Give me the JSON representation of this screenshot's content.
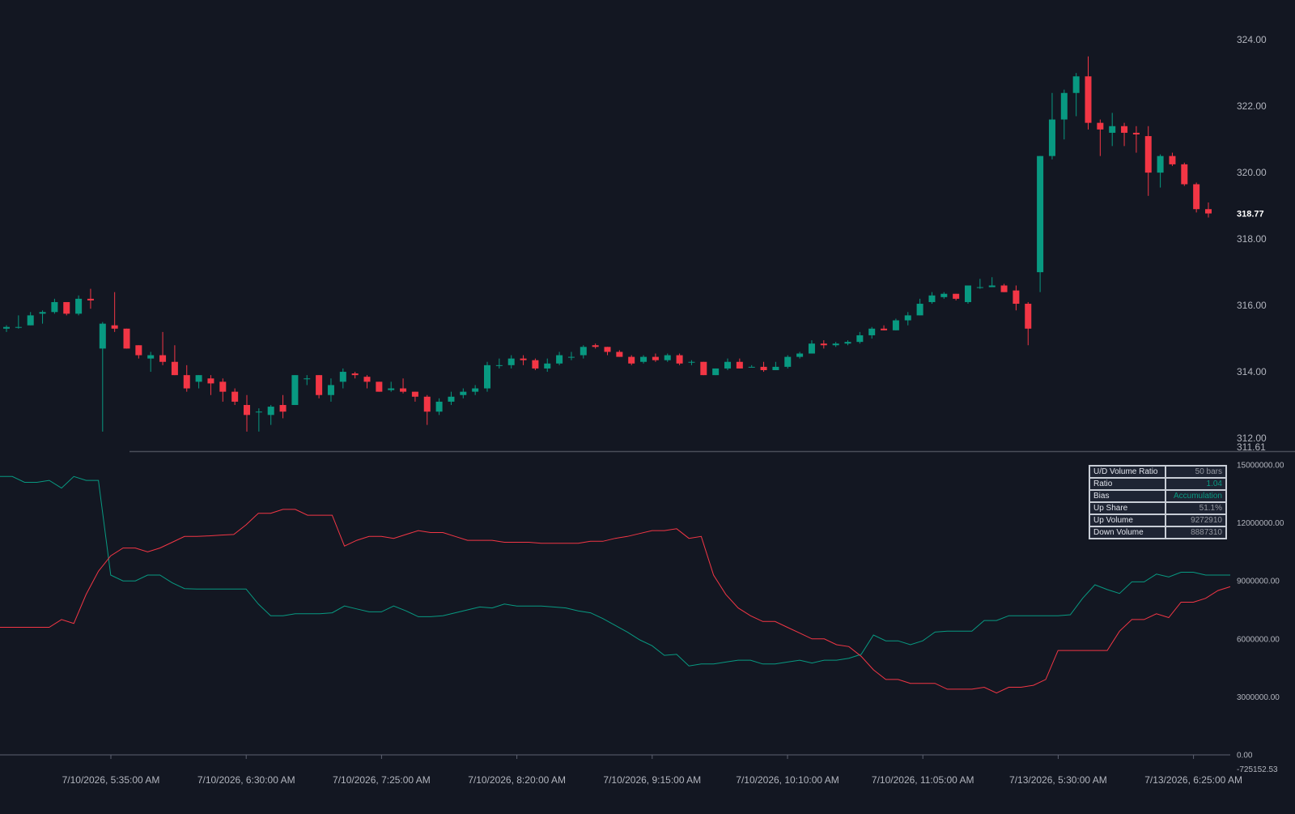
{
  "chart_data": [
    {
      "type": "candlestick",
      "name": "price",
      "price_axis_ticks": [
        "324.00",
        "322.00",
        "320.00",
        "318.00",
        "316.00",
        "314.00",
        "312.00"
      ],
      "ylim": [
        311.61,
        325.2
      ],
      "last_price": "318.77",
      "pane_bottom_label": "311.61",
      "time_labels": [
        "7/10/2026, 5:35:00 AM",
        "7/10/2026, 6:30:00 AM",
        "7/10/2026, 7:25:00 AM",
        "7/10/2026, 8:20:00 AM",
        "7/10/2026, 9:15:00 AM",
        "7/10/2026, 10:10:00 AM",
        "7/10/2026, 11:05:00 AM",
        "7/13/2026, 5:30:00 AM",
        "7/13/2026, 6:25:00 AM"
      ],
      "ohlc": [
        [
          315.3,
          315.4,
          315.2,
          315.35
        ],
        [
          315.35,
          315.7,
          315.3,
          315.35
        ],
        [
          315.4,
          315.8,
          315.4,
          315.7
        ],
        [
          315.75,
          315.85,
          315.45,
          315.8
        ],
        [
          315.8,
          316.2,
          315.75,
          316.1
        ],
        [
          316.1,
          316.1,
          315.7,
          315.75
        ],
        [
          315.75,
          316.3,
          315.7,
          316.2
        ],
        [
          316.2,
          316.5,
          315.9,
          316.15
        ],
        [
          314.7,
          315.5,
          312.2,
          315.45
        ],
        [
          315.4,
          316.4,
          315.2,
          315.3
        ],
        [
          315.3,
          315.3,
          314.7,
          314.7
        ],
        [
          314.8,
          314.8,
          314.4,
          314.5
        ],
        [
          314.4,
          314.6,
          314.0,
          314.5
        ],
        [
          314.5,
          315.2,
          314.2,
          314.3
        ],
        [
          314.3,
          314.8,
          313.9,
          313.9
        ],
        [
          313.9,
          314.2,
          313.4,
          313.5
        ],
        [
          313.7,
          313.9,
          313.5,
          313.9
        ],
        [
          313.8,
          313.9,
          313.3,
          313.65
        ],
        [
          313.7,
          313.8,
          313.1,
          313.4
        ],
        [
          313.4,
          313.5,
          313.0,
          313.1
        ],
        [
          313.0,
          313.3,
          312.2,
          312.7
        ],
        [
          312.8,
          312.9,
          312.2,
          312.8
        ],
        [
          312.7,
          313.0,
          312.4,
          312.95
        ],
        [
          313.0,
          313.3,
          312.6,
          312.8
        ],
        [
          313.0,
          313.9,
          313.0,
          313.9
        ],
        [
          313.8,
          313.9,
          313.6,
          313.8
        ],
        [
          313.9,
          313.9,
          313.2,
          313.3
        ],
        [
          313.3,
          313.8,
          313.1,
          313.6
        ],
        [
          313.7,
          314.1,
          313.5,
          314.0
        ],
        [
          313.95,
          314.0,
          313.8,
          313.9
        ],
        [
          313.85,
          313.9,
          313.5,
          313.7
        ],
        [
          313.7,
          313.7,
          313.4,
          313.4
        ],
        [
          313.45,
          313.7,
          313.4,
          313.5
        ],
        [
          313.5,
          313.8,
          313.35,
          313.4
        ],
        [
          313.4,
          313.4,
          313.1,
          313.25
        ],
        [
          313.25,
          313.3,
          312.4,
          312.8
        ],
        [
          312.8,
          313.2,
          312.7,
          313.1
        ],
        [
          313.1,
          313.4,
          313.0,
          313.25
        ],
        [
          313.3,
          313.5,
          313.2,
          313.4
        ],
        [
          313.4,
          313.6,
          313.3,
          313.5
        ],
        [
          313.5,
          314.3,
          313.4,
          314.2
        ],
        [
          314.2,
          314.4,
          314.1,
          314.2
        ],
        [
          314.2,
          314.5,
          314.1,
          314.4
        ],
        [
          314.4,
          314.5,
          314.2,
          314.35
        ],
        [
          314.35,
          314.4,
          314.05,
          314.1
        ],
        [
          314.1,
          314.4,
          314.0,
          314.25
        ],
        [
          314.25,
          314.6,
          314.2,
          314.5
        ],
        [
          314.45,
          314.6,
          314.35,
          314.45
        ],
        [
          314.5,
          314.8,
          314.4,
          314.75
        ],
        [
          314.8,
          314.85,
          314.7,
          314.75
        ],
        [
          314.75,
          314.75,
          314.5,
          314.6
        ],
        [
          314.6,
          314.65,
          314.45,
          314.45
        ],
        [
          314.45,
          314.5,
          314.2,
          314.25
        ],
        [
          314.3,
          314.5,
          314.25,
          314.45
        ],
        [
          314.45,
          314.55,
          314.3,
          314.35
        ],
        [
          314.35,
          314.55,
          314.3,
          314.5
        ],
        [
          314.5,
          314.55,
          314.2,
          314.25
        ],
        [
          314.3,
          314.35,
          314.2,
          314.3
        ],
        [
          314.3,
          314.3,
          313.9,
          313.9
        ],
        [
          313.9,
          314.1,
          313.9,
          314.1
        ],
        [
          314.1,
          314.4,
          314.05,
          314.3
        ],
        [
          314.3,
          314.4,
          314.1,
          314.1
        ],
        [
          314.15,
          314.2,
          314.15,
          314.15
        ],
        [
          314.15,
          314.3,
          314.0,
          314.05
        ],
        [
          314.05,
          314.3,
          314.05,
          314.15
        ],
        [
          314.15,
          314.5,
          314.1,
          314.45
        ],
        [
          314.45,
          314.6,
          314.4,
          314.55
        ],
        [
          314.55,
          314.95,
          314.55,
          314.85
        ],
        [
          314.85,
          314.95,
          314.7,
          314.8
        ],
        [
          314.8,
          314.9,
          314.75,
          314.85
        ],
        [
          314.85,
          314.95,
          314.8,
          314.9
        ],
        [
          314.9,
          315.2,
          314.85,
          315.1
        ],
        [
          315.1,
          315.35,
          315.0,
          315.3
        ],
        [
          315.3,
          315.4,
          315.25,
          315.25
        ],
        [
          315.25,
          315.6,
          315.25,
          315.55
        ],
        [
          315.55,
          315.8,
          315.4,
          315.7
        ],
        [
          315.7,
          316.2,
          315.7,
          316.05
        ],
        [
          316.1,
          316.4,
          316.05,
          316.3
        ],
        [
          316.25,
          316.4,
          316.2,
          316.35
        ],
        [
          316.35,
          316.35,
          316.15,
          316.2
        ],
        [
          316.1,
          316.6,
          316.05,
          316.6
        ],
        [
          316.55,
          316.8,
          316.5,
          316.55
        ],
        [
          316.55,
          316.85,
          316.55,
          316.6
        ],
        [
          316.6,
          316.65,
          316.4,
          316.4
        ],
        [
          316.45,
          316.6,
          315.85,
          316.05
        ],
        [
          316.05,
          316.1,
          314.8,
          315.3
        ],
        [
          317.0,
          320.5,
          316.4,
          320.5
        ],
        [
          320.5,
          322.4,
          320.4,
          321.6
        ],
        [
          321.6,
          322.5,
          321.0,
          322.4
        ],
        [
          322.4,
          323.0,
          321.7,
          322.9
        ],
        [
          322.9,
          323.5,
          321.3,
          321.5
        ],
        [
          321.5,
          321.6,
          320.5,
          321.3
        ],
        [
          321.2,
          321.8,
          320.8,
          321.4
        ],
        [
          321.4,
          321.5,
          320.8,
          321.2
        ],
        [
          321.2,
          321.4,
          320.6,
          321.15
        ],
        [
          321.1,
          321.4,
          319.3,
          320.0
        ],
        [
          320.0,
          320.55,
          319.55,
          320.5
        ],
        [
          320.5,
          320.6,
          320.2,
          320.25
        ],
        [
          320.25,
          320.3,
          319.6,
          319.65
        ],
        [
          319.65,
          319.7,
          318.8,
          318.9
        ],
        [
          318.9,
          319.1,
          318.65,
          318.77
        ]
      ]
    },
    {
      "type": "line",
      "name": "U/D Volume",
      "y_axis_ticks": [
        "15000000.00",
        "12000000.00",
        "9000000.00",
        "6000000.00",
        "3000000.00",
        "0.00"
      ],
      "y_axis_bottom_label": "-725152.53",
      "ylim": [
        -725152.53,
        15000000
      ],
      "series": [
        {
          "color": "#089981",
          "values": [
            14400000,
            14400000,
            14100000,
            14100000,
            14200000,
            13800000,
            14400000,
            14200000,
            14200000,
            9300000,
            9000000,
            9000000,
            9300000,
            9300000,
            8900000,
            8600000,
            8580000,
            8580000,
            8580000,
            8580000,
            8580000,
            7800000,
            7200000,
            7200000,
            7300000,
            7300000,
            7300000,
            7350000,
            7700000,
            7550000,
            7400000,
            7400000,
            7700000,
            7450000,
            7150000,
            7150000,
            7200000,
            7350000,
            7500000,
            7650000,
            7600000,
            7800000,
            7700000,
            7700000,
            7700000,
            7650000,
            7600000,
            7450000,
            7350000,
            7050000,
            6700000,
            6350000,
            5950000,
            5650000,
            5150000,
            5200000,
            4600000,
            4700000,
            4700000,
            4800000,
            4900000,
            4900000,
            4700000,
            4700000,
            4800000,
            4900000,
            4750000,
            4900000,
            4900000,
            5000000,
            5200000,
            6200000,
            5900000,
            5900000,
            5700000,
            5900000,
            6350000,
            6400000,
            6400000,
            6400000,
            6950000,
            6950000,
            7200000,
            7200000,
            7200000,
            7200000,
            7200000,
            7250000,
            8100000,
            8800000,
            8550000,
            8350000,
            8950000,
            8950000,
            9350000,
            9200000,
            9450000,
            9450000,
            9300000,
            9300000,
            9300000
          ]
        },
        {
          "color": "#f23645",
          "values": [
            6600000,
            6600000,
            6600000,
            6600000,
            6600000,
            7000000,
            6800000,
            8300000,
            9500000,
            10300000,
            10700000,
            10700000,
            10500000,
            10700000,
            11000000,
            11300000,
            11300000,
            11330000,
            11370000,
            11400000,
            11900000,
            12500000,
            12500000,
            12700000,
            12700000,
            12400000,
            12400000,
            12400000,
            10800000,
            11100000,
            11300000,
            11300000,
            11200000,
            11400000,
            11600000,
            11500000,
            11500000,
            11300000,
            11100000,
            11100000,
            11100000,
            11000000,
            11000000,
            11000000,
            10950000,
            10950000,
            10950000,
            10950000,
            11050000,
            11050000,
            11200000,
            11300000,
            11450000,
            11600000,
            11600000,
            11700000,
            11200000,
            11300000,
            9300000,
            8300000,
            7600000,
            7200000,
            6900000,
            6900000,
            6600000,
            6300000,
            6000000,
            6000000,
            5700000,
            5600000,
            5100000,
            4400000,
            3900000,
            3900000,
            3700000,
            3700000,
            3700000,
            3400000,
            3400000,
            3400000,
            3500000,
            3200000,
            3500000,
            3500000,
            3600000,
            3900000,
            5400000,
            5400000,
            5400000,
            5400000,
            5400000,
            6400000,
            7000000,
            7000000,
            7300000,
            7100000,
            7900000,
            7900000,
            8100000,
            8500000,
            8700000
          ]
        }
      ]
    }
  ],
  "indicator_table": {
    "title_key": "U/D Volume Ratio",
    "title_value": "50 bars",
    "rows": [
      {
        "key": "Ratio",
        "value": "1.04"
      },
      {
        "key": "Bias",
        "value": "Accumulation"
      },
      {
        "key": "Up Share",
        "value": "51.1%"
      },
      {
        "key": "Up Volume",
        "value": "9272910"
      },
      {
        "key": "Down Volume",
        "value": "8887310"
      }
    ]
  },
  "colors": {
    "background": "#131722",
    "up": "#089981",
    "down": "#f23645",
    "axis_text": "#b2b5be",
    "separator": "#4a4e59"
  }
}
